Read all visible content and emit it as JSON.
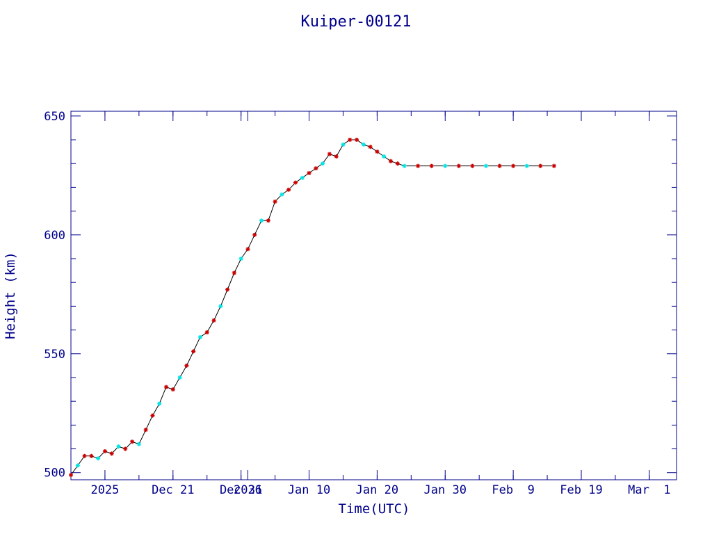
{
  "chart_data": {
    "type": "scatter",
    "title": "Kuiper-00121",
    "xlabel": "Time(UTC)",
    "ylabel": "Height (km)",
    "xlim": [
      "2025-12-06",
      "2026-03-05"
    ],
    "ylim": [
      497,
      652
    ],
    "x_ticks": [
      {
        "date": "2025-12-11",
        "label": "2025"
      },
      {
        "date": "2025-12-21",
        "label": "Dec 21"
      },
      {
        "date": "2025-12-31",
        "label": "Dec 31"
      },
      {
        "date": "2026-01-01",
        "label": "2026"
      },
      {
        "date": "2026-01-10",
        "label": "Jan 10"
      },
      {
        "date": "2026-01-20",
        "label": "Jan 20"
      },
      {
        "date": "2026-01-30",
        "label": "Jan 30"
      },
      {
        "date": "2026-02-09",
        "label": "Feb  9"
      },
      {
        "date": "2026-02-19",
        "label": "Feb 19"
      },
      {
        "date": "2026-03-01",
        "label": "Mar  1"
      }
    ],
    "y_ticks": [
      500,
      550,
      600,
      650
    ],
    "colors": {
      "axis": "#00008b",
      "line": "#000000",
      "marker_a": "#cc0000",
      "marker_b": "#00e5e5"
    },
    "series": [
      {
        "points": [
          [
            "2025-12-06",
            499
          ],
          [
            "2025-12-07",
            503
          ],
          [
            "2025-12-08",
            507
          ],
          [
            "2025-12-09",
            507
          ],
          [
            "2025-12-10",
            506
          ],
          [
            "2025-12-11",
            509
          ],
          [
            "2025-12-12",
            508
          ],
          [
            "2025-12-13",
            511
          ],
          [
            "2025-12-14",
            510
          ],
          [
            "2025-12-15",
            513
          ],
          [
            "2025-12-16",
            512
          ],
          [
            "2025-12-17",
            518
          ],
          [
            "2025-12-18",
            524
          ],
          [
            "2025-12-19",
            529
          ],
          [
            "2025-12-20",
            536
          ],
          [
            "2025-12-21",
            535
          ],
          [
            "2025-12-22",
            540
          ],
          [
            "2025-12-23",
            545
          ],
          [
            "2025-12-24",
            551
          ],
          [
            "2025-12-25",
            557
          ],
          [
            "2025-12-26",
            559
          ],
          [
            "2025-12-27",
            564
          ],
          [
            "2025-12-28",
            570
          ],
          [
            "2025-12-29",
            577
          ],
          [
            "2025-12-30",
            584
          ],
          [
            "2025-12-31",
            590
          ],
          [
            "2026-01-01",
            594
          ],
          [
            "2026-01-02",
            600
          ],
          [
            "2026-01-03",
            606
          ],
          [
            "2026-01-04",
            606
          ],
          [
            "2026-01-05",
            614
          ],
          [
            "2026-01-06",
            617
          ],
          [
            "2026-01-07",
            619
          ],
          [
            "2026-01-08",
            622
          ],
          [
            "2026-01-09",
            624
          ],
          [
            "2026-01-10",
            626
          ],
          [
            "2026-01-11",
            628
          ],
          [
            "2026-01-12",
            630
          ],
          [
            "2026-01-13",
            634
          ],
          [
            "2026-01-14",
            633
          ],
          [
            "2026-01-15",
            638
          ],
          [
            "2026-01-16",
            640
          ],
          [
            "2026-01-17",
            640
          ],
          [
            "2026-01-18",
            638
          ],
          [
            "2026-01-19",
            637
          ],
          [
            "2026-01-20",
            635
          ],
          [
            "2026-01-21",
            633
          ],
          [
            "2026-01-22",
            631
          ],
          [
            "2026-01-23",
            630
          ],
          [
            "2026-01-24",
            629
          ],
          [
            "2026-01-26",
            629
          ],
          [
            "2026-01-28",
            629
          ],
          [
            "2026-01-30",
            629
          ],
          [
            "2026-02-01",
            629
          ],
          [
            "2026-02-03",
            629
          ],
          [
            "2026-02-05",
            629
          ],
          [
            "2026-02-07",
            629
          ],
          [
            "2026-02-09",
            629
          ],
          [
            "2026-02-11",
            629
          ],
          [
            "2026-02-13",
            629
          ],
          [
            "2026-02-15",
            629
          ]
        ]
      }
    ]
  }
}
